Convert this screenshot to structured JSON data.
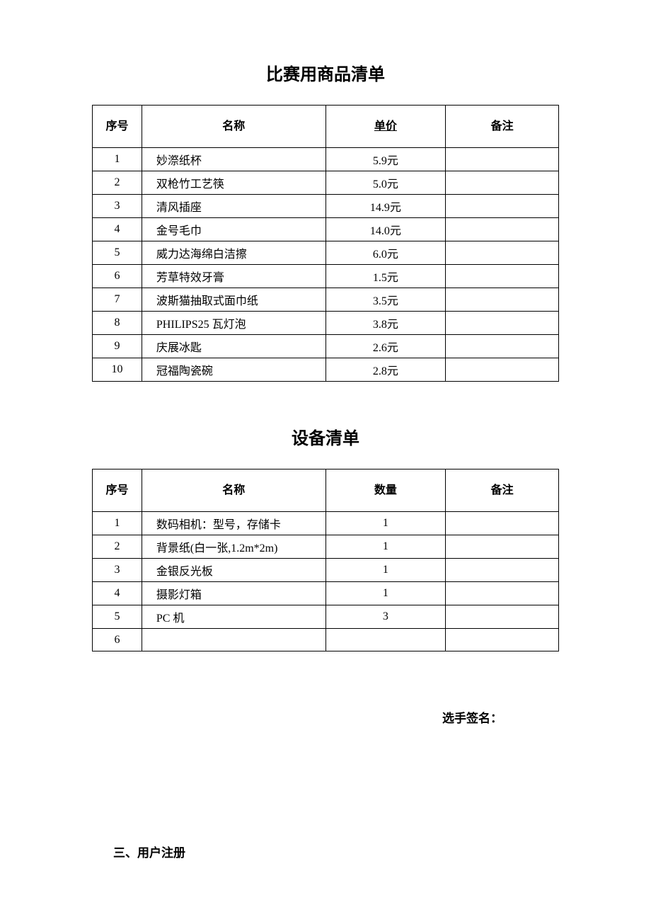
{
  "table1": {
    "title": "比赛用商品清单",
    "headers": {
      "num": "序号",
      "name": "名称",
      "price": "单价",
      "note": "备注"
    },
    "rows": [
      {
        "num": "1",
        "name": "妙漈纸杯",
        "price": "5.9元",
        "note": ""
      },
      {
        "num": "2",
        "name": "双枪竹工艺筷",
        "price": "5.0元",
        "note": ""
      },
      {
        "num": "3",
        "name": "清风插座",
        "price": "14.9元",
        "note": ""
      },
      {
        "num": "4",
        "name": "金号毛巾",
        "price": "14.0元",
        "note": ""
      },
      {
        "num": "5",
        "name": "威力达海绵白洁擦",
        "price": "6.0元",
        "note": ""
      },
      {
        "num": "6",
        "name": "芳草特效牙膏",
        "price": "1.5元",
        "note": ""
      },
      {
        "num": "7",
        "name": "波斯猫抽取式面巾纸",
        "price": "3.5元",
        "note": ""
      },
      {
        "num": "8",
        "name": "PHILIPS25 瓦灯泡",
        "price": "3.8元",
        "note": ""
      },
      {
        "num": "9",
        "name": "庆展冰匙",
        "price": "2.6元",
        "note": ""
      },
      {
        "num": "10",
        "name": "冠福陶瓷碗",
        "price": "2.8元",
        "note": ""
      }
    ]
  },
  "table2": {
    "title": "设备清单",
    "headers": {
      "num": "序号",
      "name": "名称",
      "qty": "数量",
      "note": "备注"
    },
    "rows": [
      {
        "num": "1",
        "name": "数码相机：型号，存储卡",
        "qty": "1",
        "note": ""
      },
      {
        "num": "2",
        "name": "背景纸(白一张,1.2m*2m)",
        "qty": "1",
        "note": ""
      },
      {
        "num": "3",
        "name": "金银反光板",
        "qty": "1",
        "note": ""
      },
      {
        "num": "4",
        "name": "摄影灯箱",
        "qty": "1",
        "note": ""
      },
      {
        "num": "5",
        "name": "PC 机",
        "qty": "3",
        "note": ""
      },
      {
        "num": "6",
        "name": "",
        "qty": "",
        "note": ""
      }
    ]
  },
  "signature_label": "选手签名：",
  "section_heading": "三、用户注册"
}
